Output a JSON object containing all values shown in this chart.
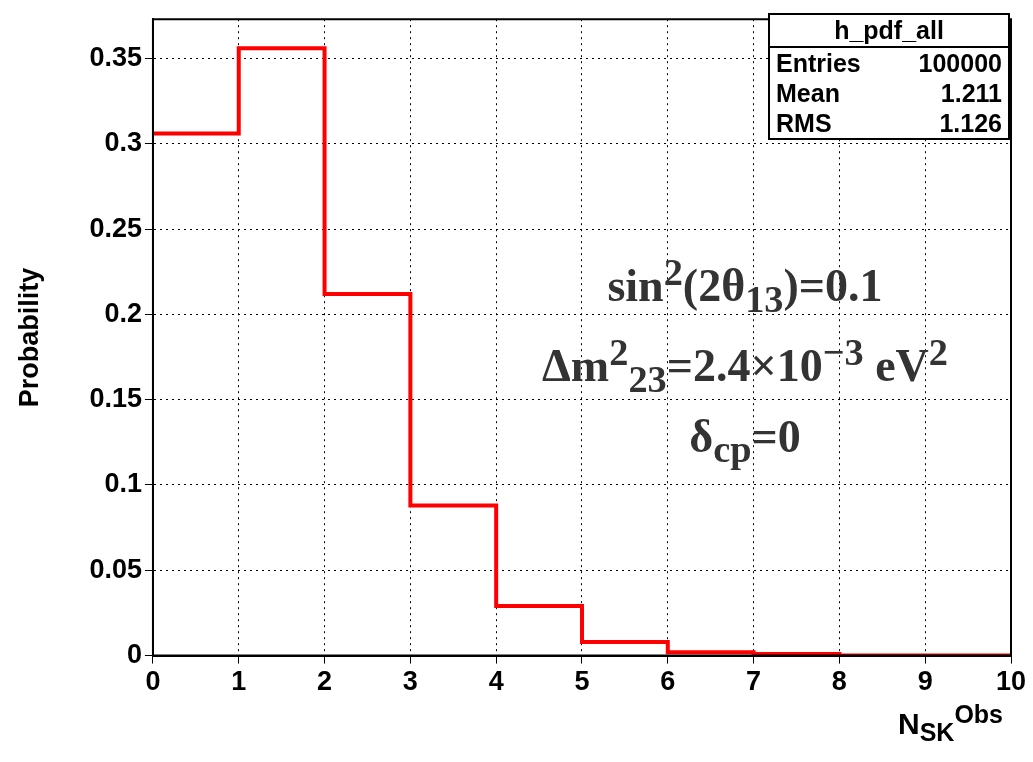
{
  "chart_data": {
    "type": "histogram",
    "ylabel": "Probability",
    "xlabel": "N$_{SK}$$^{Obs}$",
    "bins": [
      0,
      1,
      2,
      3,
      4,
      5,
      6,
      7,
      8,
      9,
      10
    ],
    "values": [
      0.306,
      0.356,
      0.212,
      0.088,
      0.029,
      0.008,
      0.002,
      0.001,
      0,
      0
    ],
    "color": "#ff0000",
    "xlim": [
      0,
      10
    ],
    "xticks": [
      0,
      1,
      2,
      3,
      4,
      5,
      6,
      7,
      8,
      9,
      10
    ],
    "ylim": [
      0,
      0.373
    ],
    "yticks": [
      0,
      0.05,
      0.1,
      0.15,
      0.2,
      0.25,
      0.3,
      0.35
    ],
    "grid": true,
    "annotations": [
      "h_pdf_all",
      "Entries",
      "100000",
      "Mean",
      "1.211",
      "RMS",
      "1.126",
      "sin$^{2}$(2θ$_{13}$)=0.1",
      "Δm$^{2}$$_{23}$=2.4×10$^{−3}$ eV$^{2}$",
      "δ$_{cp}$=0"
    ]
  }
}
